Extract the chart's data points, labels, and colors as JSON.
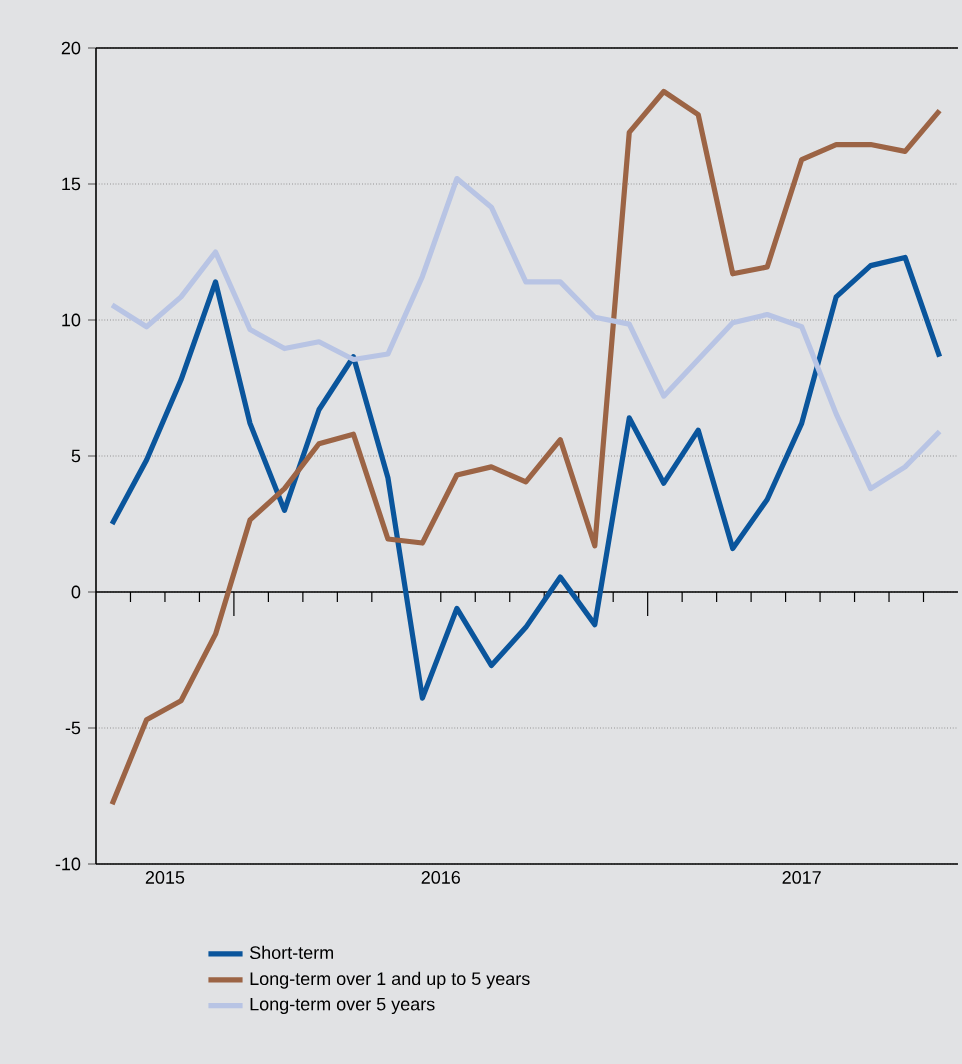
{
  "chart_data": {
    "type": "line",
    "x": [
      "2015-09-15",
      "2015-10-15",
      "2015-11-15",
      "2015-12-15",
      "2016-01-15",
      "2016-02-15",
      "2016-03-15",
      "2016-04-15",
      "2016-05-15",
      "2016-06-15",
      "2016-07-15",
      "2016-08-15",
      "2016-09-15",
      "2016-10-15",
      "2016-11-15",
      "2016-12-15",
      "2017-01-15",
      "2017-02-15",
      "2017-03-15",
      "2017-04-15",
      "2017-05-15",
      "2017-06-15",
      "2017-07-15",
      "2017-08-15",
      "2017-09-15"
    ],
    "series": [
      {
        "name": "Short-term",
        "color": "#0a559c",
        "values": [
          2.5,
          4.85,
          7.8,
          11.4,
          6.2,
          3.0,
          6.7,
          8.65,
          4.2,
          -3.9,
          -0.6,
          -2.7,
          -1.3,
          0.55,
          -1.2,
          6.4,
          4.0,
          5.95,
          1.6,
          3.4,
          6.2,
          10.85,
          12.0,
          12.3,
          8.65
        ]
      },
      {
        "name": "Long-term over 1 and up to 5 years",
        "color": "#9c6445",
        "values": [
          -7.8,
          -4.7,
          -4.0,
          -1.55,
          2.65,
          3.8,
          5.45,
          5.8,
          1.95,
          1.8,
          4.3,
          4.6,
          4.05,
          5.6,
          1.7,
          16.9,
          18.4,
          17.55,
          11.7,
          11.95,
          15.9,
          16.45,
          16.45,
          16.2,
          17.7
        ]
      },
      {
        "name": "Long-term over 5 years",
        "color": "#b8c4e4",
        "values": [
          10.55,
          9.75,
          10.85,
          12.5,
          9.65,
          8.95,
          9.2,
          8.55,
          8.75,
          11.6,
          15.2,
          14.15,
          11.4,
          11.4,
          10.1,
          9.85,
          7.2,
          8.55,
          9.9,
          10.2,
          9.75,
          6.55,
          3.8,
          4.6,
          5.9
        ]
      }
    ],
    "xlim": [
      "2015-09-01",
      "2017-10-01"
    ],
    "xticks": [
      {
        "value": "2015-10-01",
        "label": null
      },
      {
        "value": "2015-11-01",
        "label": null
      },
      {
        "value": "2015-12-01",
        "label": null
      },
      {
        "value": "2016-01-01",
        "label": null
      },
      {
        "value": "2016-02-01",
        "label": null
      },
      {
        "value": "2016-03-01",
        "label": null
      },
      {
        "value": "2016-04-01",
        "label": null
      },
      {
        "value": "2016-05-01",
        "label": null
      },
      {
        "value": "2016-06-01",
        "label": null
      },
      {
        "value": "2016-07-01",
        "label": null
      },
      {
        "value": "2016-08-01",
        "label": null
      },
      {
        "value": "2016-09-01",
        "label": null
      },
      {
        "value": "2016-10-01",
        "label": null
      },
      {
        "value": "2016-11-01",
        "label": null
      },
      {
        "value": "2016-12-01",
        "label": null
      },
      {
        "value": "2017-01-01",
        "label": null
      },
      {
        "value": "2017-02-01",
        "label": null
      },
      {
        "value": "2017-03-01",
        "label": null
      },
      {
        "value": "2017-04-01",
        "label": null
      },
      {
        "value": "2017-05-01",
        "label": null
      },
      {
        "value": "2017-06-01",
        "label": null
      },
      {
        "value": "2017-07-01",
        "label": null
      },
      {
        "value": "2017-08-01",
        "label": null
      },
      {
        "value": "2017-09-01",
        "label": null
      },
      {
        "value": "2015-11-01",
        "label": "2015"
      },
      {
        "value": "2016-07-01",
        "label": "2016"
      },
      {
        "value": "2017-05-15",
        "label": "2017"
      }
    ],
    "ylim": [
      -10,
      20
    ],
    "yticks": [
      -10,
      -5,
      0,
      5,
      10,
      15,
      20
    ],
    "grid": "y",
    "legend": "bottom",
    "line_style": "solid",
    "marker": "none"
  }
}
